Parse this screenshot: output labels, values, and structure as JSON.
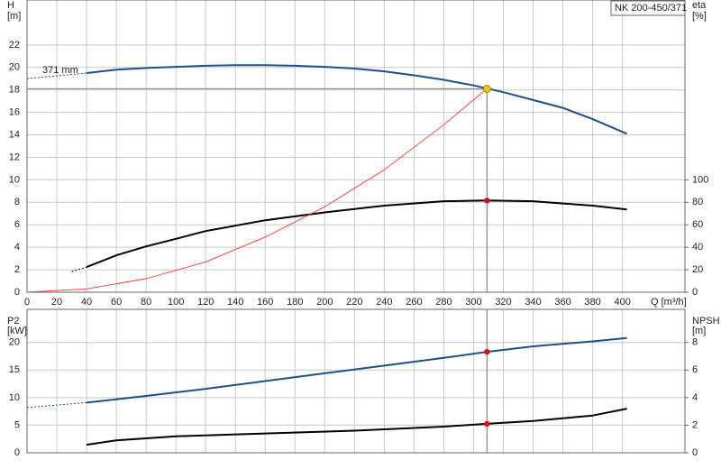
{
  "chart_data": [
    {
      "type": "line",
      "title": "NK 200-450/371",
      "ylabel": "H",
      "yunit": "[m]",
      "y2label": "eta",
      "y2unit": "[%]",
      "xlabel": "Q [m³/h]",
      "annotation": "371 mm",
      "xlim": [
        0,
        442
      ],
      "xticks": [
        0,
        20,
        40,
        60,
        80,
        100,
        120,
        140,
        160,
        180,
        200,
        220,
        240,
        260,
        280,
        300,
        320,
        340,
        360,
        380,
        400
      ],
      "ylim": [
        0,
        26
      ],
      "yticks": [
        0,
        2,
        4,
        6,
        8,
        10,
        12,
        14,
        16,
        18,
        20,
        22
      ],
      "y2lim": [
        0,
        260
      ],
      "y2ticks": [
        0,
        20,
        40,
        60,
        80,
        100
      ],
      "grid": true,
      "xtick_labels": true,
      "series": [
        {
          "x": [
            0,
            40
          ],
          "values": [
            19.0,
            19.5
          ],
          "color": "#1f4e8c",
          "style": "dashed"
        },
        {
          "x": [
            40,
            60,
            80,
            100,
            120,
            140,
            160,
            180,
            200,
            220,
            240,
            260,
            280,
            300,
            320,
            340,
            360,
            380,
            403
          ],
          "values": [
            19.5,
            19.8,
            19.95,
            20.05,
            20.15,
            20.2,
            20.2,
            20.15,
            20.05,
            19.9,
            19.65,
            19.3,
            18.9,
            18.4,
            17.8,
            17.1,
            16.4,
            15.4,
            14.1
          ],
          "color": "#1f4e8c"
        },
        {
          "x": [
            30,
            40
          ],
          "values": [
            18.4,
            22.4
          ],
          "color": "#000000",
          "style": "dashed",
          "axis": "y2"
        },
        {
          "x": [
            40,
            60,
            80,
            100,
            120,
            160,
            200,
            240,
            280,
            309,
            340,
            360,
            380,
            403
          ],
          "values": [
            22.4,
            32.8,
            40.8,
            47.5,
            54.4,
            64,
            71,
            77,
            81,
            81.6,
            81,
            79,
            77,
            73.6
          ],
          "color": "#000000",
          "axis": "y2"
        },
        {
          "x": [
            0,
            40,
            80,
            120,
            160,
            200,
            240,
            280,
            309
          ],
          "values": [
            0,
            0.3,
            1.2,
            2.7,
            4.9,
            7.6,
            10.9,
            14.9,
            18.1
          ],
          "color": "#ff3030",
          "style": "thin"
        }
      ],
      "markers": [
        {
          "x": 309,
          "y": 18.1,
          "color": "#f5c518",
          "guide": true
        },
        {
          "x": 309,
          "y": 81.6,
          "color": "#e01010",
          "axis": "y2"
        }
      ]
    },
    {
      "type": "line",
      "ylabel": "P2",
      "yunit": "[kW]",
      "y2label": "NPSH",
      "y2unit": "[m]",
      "xlim": [
        0,
        442
      ],
      "xticks": [
        0,
        20,
        40,
        60,
        80,
        100,
        120,
        140,
        160,
        180,
        200,
        220,
        240,
        260,
        280,
        300,
        320,
        340,
        360,
        380,
        400
      ],
      "ylim": [
        0,
        26
      ],
      "yticks": [
        0,
        5,
        10,
        15,
        20
      ],
      "y2lim": [
        0,
        10.4
      ],
      "y2ticks": [
        0,
        2,
        4,
        6,
        8
      ],
      "grid": true,
      "xtick_labels": false,
      "vline": 309,
      "series": [
        {
          "x": [
            0,
            40
          ],
          "values": [
            8.2,
            9.1
          ],
          "color": "#1f4e8c",
          "style": "dashed"
        },
        {
          "x": [
            40,
            80,
            120,
            160,
            200,
            240,
            280,
            309,
            340,
            380,
            403
          ],
          "values": [
            9.1,
            10.3,
            11.6,
            13.0,
            14.4,
            15.8,
            17.2,
            18.3,
            19.3,
            20.2,
            20.8
          ],
          "color": "#1f4e8c"
        },
        {
          "x": [
            40,
            60,
            100,
            160,
            220,
            280,
            309,
            340,
            380,
            403
          ],
          "values": [
            0.58,
            0.9,
            1.2,
            1.4,
            1.6,
            1.9,
            2.1,
            2.3,
            2.7,
            3.2
          ],
          "color": "#000000",
          "axis": "y2"
        }
      ],
      "markers": [
        {
          "x": 309,
          "y": 18.3,
          "color": "#e01010"
        },
        {
          "x": 309,
          "y": 2.1,
          "color": "#e01010",
          "axis": "y2"
        }
      ]
    }
  ]
}
